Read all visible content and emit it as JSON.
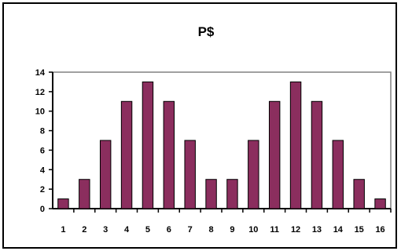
{
  "chart_data": {
    "type": "bar",
    "title": "P$",
    "xlabel": "",
    "ylabel": "",
    "categories": [
      "1",
      "2",
      "3",
      "4",
      "5",
      "6",
      "7",
      "8",
      "9",
      "10",
      "11",
      "12",
      "13",
      "14",
      "15",
      "16"
    ],
    "values": [
      1,
      3,
      7,
      11,
      13,
      11,
      7,
      3,
      3,
      7,
      11,
      13,
      11,
      7,
      3,
      1
    ],
    "ylim": [
      0,
      14
    ],
    "yticks": [
      0,
      2,
      4,
      6,
      8,
      10,
      12,
      14
    ],
    "grid": false,
    "legend": "none",
    "bar_color": "#8b2e5e",
    "bar_edge_color": "#000000"
  }
}
